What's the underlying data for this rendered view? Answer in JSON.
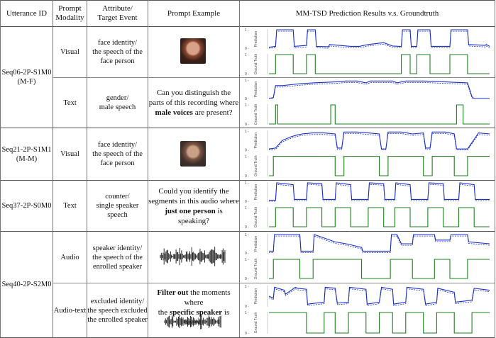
{
  "header": {
    "utterance_id": "Utterance ID",
    "prompt_modality": [
      "Prompt",
      "Modality"
    ],
    "attribute": [
      "Attribute/",
      "Target Event"
    ],
    "prompt_example": "Prompt Example",
    "results": "MM-TSD Prediction Results v.s. Groundtruth"
  },
  "plot_labels": {
    "prediction": "Prediction",
    "ground_truth": "Ground Truth",
    "tick_top": "1 -",
    "tick_bottom": "0 -"
  },
  "colors": {
    "prediction": "#1a2fc8",
    "ground_truth": "#1e7f1e",
    "border": "#555555"
  },
  "utterances": [
    {
      "id": "Seq06-2P-S1M0",
      "sub": "(M-F)"
    },
    {
      "id": "Seq21-2P-S1M1",
      "sub": "(M-M)"
    },
    {
      "id": "Seq37-2P-S0M0",
      "sub": ""
    },
    {
      "id": "Seq40-2P-S2M0",
      "sub": ""
    }
  ],
  "rows": [
    {
      "modality": "Visual",
      "attribute": [
        "face identity/",
        "the speech of the",
        "face person"
      ],
      "prompt": {
        "type": "image",
        "icon": "female-face-icon"
      }
    },
    {
      "modality": "Text",
      "attribute": [
        "gender/",
        "male speech"
      ],
      "prompt": {
        "type": "text",
        "parts": [
          "Can you distinguish the",
          "parts of this recording where",
          "male voices",
          " are present?"
        ]
      }
    },
    {
      "modality": "Visual",
      "attribute": [
        "face identity/",
        "the speech of the",
        "face person"
      ],
      "prompt": {
        "type": "image",
        "icon": "male-face-icon"
      }
    },
    {
      "modality": "Text",
      "attribute": [
        "counter/",
        "single speaker",
        "speech"
      ],
      "prompt": {
        "type": "text",
        "parts": [
          "Could you identify the",
          "segments in this audio where",
          "just one person",
          " is speaking?"
        ]
      }
    },
    {
      "modality": "Audio",
      "attribute": [
        "speaker identity/",
        "the speech of the",
        "enrolled speaker"
      ],
      "prompt": {
        "type": "waveform",
        "icon": "waveform-icon"
      }
    },
    {
      "modality": "Audio-text",
      "attribute": [
        "excluded identity/",
        "the speech excluded",
        "the enrolled speaker"
      ],
      "prompt": {
        "type": "text+waveform",
        "parts": [
          "Filter out",
          " the moments where",
          "the ",
          "specific speaker",
          " is heard."
        ]
      }
    }
  ],
  "chart_data": [
    {
      "type": "line",
      "row": 1,
      "series": [
        {
          "name": "Prediction",
          "x": [
            0,
            3,
            3.5,
            11,
            11.5,
            17,
            17.5,
            21,
            21.5,
            27,
            27.5,
            37,
            41,
            45,
            52,
            56,
            59,
            60,
            60.5,
            64,
            64.5,
            67,
            67.5,
            73,
            73.5,
            82,
            82.5,
            90,
            90.5,
            98,
            98.5,
            100
          ],
          "y": [
            0.05,
            0.1,
            1,
            1,
            0.1,
            0.15,
            1,
            1,
            0.1,
            0.08,
            0.2,
            0.1,
            0.1,
            0.2,
            0.3,
            0.12,
            0.1,
            0.1,
            1,
            1,
            0.1,
            0.1,
            1,
            1,
            0.1,
            0.1,
            1,
            1,
            0.2,
            0.15,
            0.2,
            0.1
          ]
        },
        {
          "name": "Ground Truth",
          "x": [
            0,
            3,
            3,
            11,
            11,
            17,
            17,
            21,
            21,
            60,
            60,
            64,
            64,
            67,
            67,
            73,
            73,
            82,
            82,
            90,
            90,
            100
          ],
          "y": [
            0,
            0,
            1,
            1,
            0,
            0,
            1,
            1,
            0,
            0,
            1,
            1,
            0,
            0,
            1,
            1,
            0,
            0,
            1,
            1,
            0,
            0
          ]
        }
      ]
    },
    {
      "type": "line",
      "row": 2,
      "series": [
        {
          "name": "Prediction",
          "x": [
            0,
            2,
            3,
            6,
            10,
            14,
            20,
            30,
            35,
            40,
            44,
            46,
            52,
            56,
            58,
            62,
            70,
            80,
            90,
            92,
            93,
            100
          ],
          "y": [
            0,
            0.05,
            0.7,
            0.7,
            0.75,
            0.8,
            0.85,
            0.9,
            0.95,
            0.95,
            0.85,
            0.95,
            0.95,
            0.95,
            0.85,
            0.95,
            0.95,
            0.9,
            0.85,
            0.1,
            0,
            0
          ]
        },
        {
          "name": "Ground Truth",
          "x": [
            0,
            3,
            3,
            4,
            4,
            28,
            28,
            30,
            30,
            85,
            85,
            88,
            88,
            100
          ],
          "y": [
            0,
            0,
            1,
            1,
            0,
            0,
            1,
            1,
            0,
            0,
            1,
            1,
            0,
            0
          ]
        }
      ]
    },
    {
      "type": "line",
      "row": 3,
      "series": [
        {
          "name": "Prediction",
          "x": [
            0,
            3,
            6,
            8,
            10,
            13,
            15,
            20,
            25,
            30,
            31,
            33,
            34,
            40,
            45,
            50,
            51,
            53,
            54,
            60,
            65,
            70,
            71,
            73,
            74,
            80,
            84,
            85,
            90,
            95,
            100
          ],
          "y": [
            0.05,
            0.1,
            0.5,
            0.6,
            0.7,
            0.8,
            0.85,
            0.9,
            0.9,
            0.85,
            0.1,
            0.1,
            0.95,
            0.95,
            0.9,
            0.85,
            0.05,
            0.05,
            0.95,
            0.95,
            0.85,
            0.9,
            0.1,
            0.1,
            0.95,
            0.95,
            0.85,
            0.05,
            0.05,
            0.9,
            0.85
          ]
        },
        {
          "name": "Ground Truth",
          "x": [
            0,
            2,
            2,
            30,
            30,
            34,
            34,
            50,
            50,
            54,
            54,
            70,
            70,
            74,
            74,
            84,
            84,
            90,
            90,
            100
          ],
          "y": [
            0,
            0,
            1,
            1,
            0,
            0,
            1,
            1,
            0,
            0,
            1,
            1,
            0,
            0,
            1,
            1,
            0,
            0,
            1,
            1
          ]
        }
      ]
    },
    {
      "type": "line",
      "row": 4,
      "series": [
        {
          "name": "Prediction",
          "x": [
            0,
            3,
            3.5,
            11,
            11.5,
            17,
            17.5,
            24,
            24.5,
            30,
            30.5,
            37,
            37.5,
            45,
            45.5,
            52,
            52.5,
            57,
            57.5,
            64,
            64.5,
            72,
            72.5,
            79,
            79.5,
            86,
            86.5,
            93,
            93.5,
            100
          ],
          "y": [
            0.05,
            0.05,
            1,
            0.9,
            0.1,
            0.1,
            1,
            0.95,
            0.1,
            0.1,
            1,
            0.9,
            0.1,
            0.1,
            1,
            0.95,
            0.1,
            0.1,
            1,
            0.9,
            0.1,
            0.1,
            1,
            0.95,
            0.1,
            0.1,
            1,
            0.9,
            0.1,
            0.1
          ]
        },
        {
          "name": "Ground Truth",
          "x": [
            0,
            3,
            3,
            11,
            11,
            17,
            17,
            24,
            24,
            30,
            30,
            37,
            37,
            45,
            45,
            52,
            52,
            57,
            57,
            64,
            64,
            72,
            72,
            79,
            79,
            86,
            86,
            93,
            93,
            100
          ],
          "y": [
            0,
            0,
            1,
            1,
            0,
            0,
            1,
            1,
            0,
            0,
            1,
            1,
            0,
            0,
            1,
            1,
            0,
            0,
            1,
            1,
            0,
            0,
            1,
            1,
            0,
            0,
            1,
            1,
            0,
            0
          ]
        }
      ]
    },
    {
      "type": "line",
      "row": 5,
      "series": [
        {
          "name": "Prediction",
          "x": [
            0,
            2,
            2.5,
            14,
            14.5,
            20,
            20.5,
            30,
            35,
            42,
            42.5,
            55,
            55.5,
            58,
            60,
            65,
            65.5,
            75,
            75.5,
            82,
            82.5,
            90,
            90.5,
            100
          ],
          "y": [
            0.1,
            0.1,
            1,
            1,
            0.1,
            0.1,
            1,
            0.6,
            0.5,
            0.3,
            0.1,
            0.1,
            1,
            1,
            0.5,
            0.5,
            1,
            1,
            0.7,
            0.7,
            1,
            1,
            0.6,
            0.5
          ]
        },
        {
          "name": "Ground Truth",
          "x": [
            0,
            2,
            2,
            14,
            14,
            20,
            20,
            42,
            42,
            55,
            55,
            65,
            65,
            75,
            75,
            82,
            82,
            90,
            90,
            100
          ],
          "y": [
            0,
            0,
            1,
            1,
            0,
            0,
            1,
            1,
            0,
            0,
            1,
            1,
            0,
            0,
            1,
            1,
            0,
            0,
            1,
            1
          ]
        }
      ]
    },
    {
      "type": "line",
      "row": 6,
      "series": [
        {
          "name": "Prediction",
          "x": [
            0,
            2,
            2.5,
            7,
            7.5,
            12,
            13,
            17,
            17.5,
            25,
            25.5,
            30,
            31,
            36,
            36.5,
            44,
            44.5,
            50,
            51,
            56,
            56.5,
            62,
            62.5,
            70,
            71,
            76,
            76.5,
            84,
            84.5,
            92,
            93,
            100
          ],
          "y": [
            0.5,
            0.4,
            0.95,
            0.8,
            0.6,
            0.95,
            0.9,
            0.85,
            0.1,
            0.2,
            0.95,
            0.9,
            0.15,
            0.2,
            0.95,
            0.85,
            0.1,
            0.2,
            0.95,
            0.85,
            0.1,
            0.2,
            0.95,
            0.85,
            0.1,
            0.2,
            0.9,
            0.7,
            0.2,
            0.3,
            0.9,
            0.8
          ]
        },
        {
          "name": "Ground Truth",
          "x": [
            0,
            2,
            2,
            17,
            17,
            25,
            25,
            30,
            30,
            36,
            36,
            44,
            44,
            50,
            50,
            56,
            56,
            62,
            62,
            70,
            70,
            76,
            76,
            84,
            84,
            92,
            92,
            100
          ],
          "y": [
            1,
            1,
            1,
            1,
            0,
            0,
            1,
            1,
            0,
            0,
            1,
            1,
            0,
            0,
            1,
            1,
            0,
            0,
            1,
            1,
            0,
            0,
            1,
            1,
            0,
            0,
            1,
            1
          ]
        }
      ]
    }
  ]
}
